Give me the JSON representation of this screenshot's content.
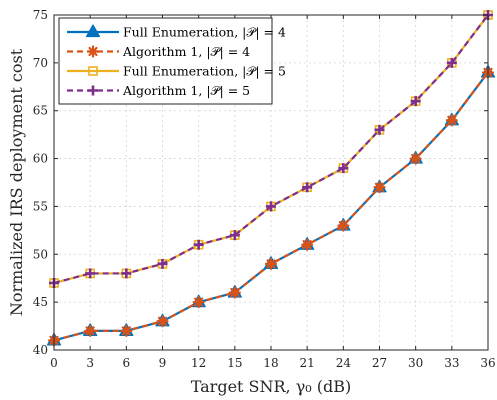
{
  "chart_data": {
    "type": "line",
    "xlabel": "Target SNR, γ₀ (dB)",
    "ylabel": "Normalized IRS deployment cost",
    "x": [
      0,
      3,
      6,
      9,
      12,
      15,
      18,
      21,
      24,
      27,
      30,
      33,
      36
    ],
    "xlim": [
      0,
      36
    ],
    "ylim": [
      40,
      75
    ],
    "xticks": [
      0,
      3,
      6,
      9,
      12,
      15,
      18,
      21,
      24,
      27,
      30,
      33,
      36
    ],
    "yticks": [
      40,
      45,
      50,
      55,
      60,
      65,
      70,
      75
    ],
    "grid": true,
    "legend_position": "top-left",
    "series": [
      {
        "name": "Full Enumeration, |𝒫| = 4",
        "color": "#0072BD",
        "marker": "triangle",
        "linestyle": "solid",
        "values": [
          41,
          42,
          42,
          43,
          45,
          46,
          49,
          51,
          53,
          57,
          60,
          64,
          69
        ]
      },
      {
        "name": "Algorithm 1, |𝒫| = 4",
        "color": "#D95319",
        "marker": "star",
        "linestyle": "dashed",
        "values": [
          41,
          42,
          42,
          43,
          45,
          46,
          49,
          51,
          53,
          57,
          60,
          64,
          69
        ]
      },
      {
        "name": "Full Enumeration, |𝒫| = 5",
        "color": "#EDB120",
        "marker": "square",
        "linestyle": "solid",
        "values": [
          47,
          48,
          48,
          49,
          51,
          52,
          55,
          57,
          59,
          63,
          66,
          70,
          75
        ]
      },
      {
        "name": "Algorithm 1, |𝒫| = 5",
        "color": "#7E2F8E",
        "marker": "plus",
        "linestyle": "dashed",
        "values": [
          47,
          48,
          48,
          49,
          51,
          52,
          55,
          57,
          59,
          63,
          66,
          70,
          75
        ]
      }
    ]
  }
}
